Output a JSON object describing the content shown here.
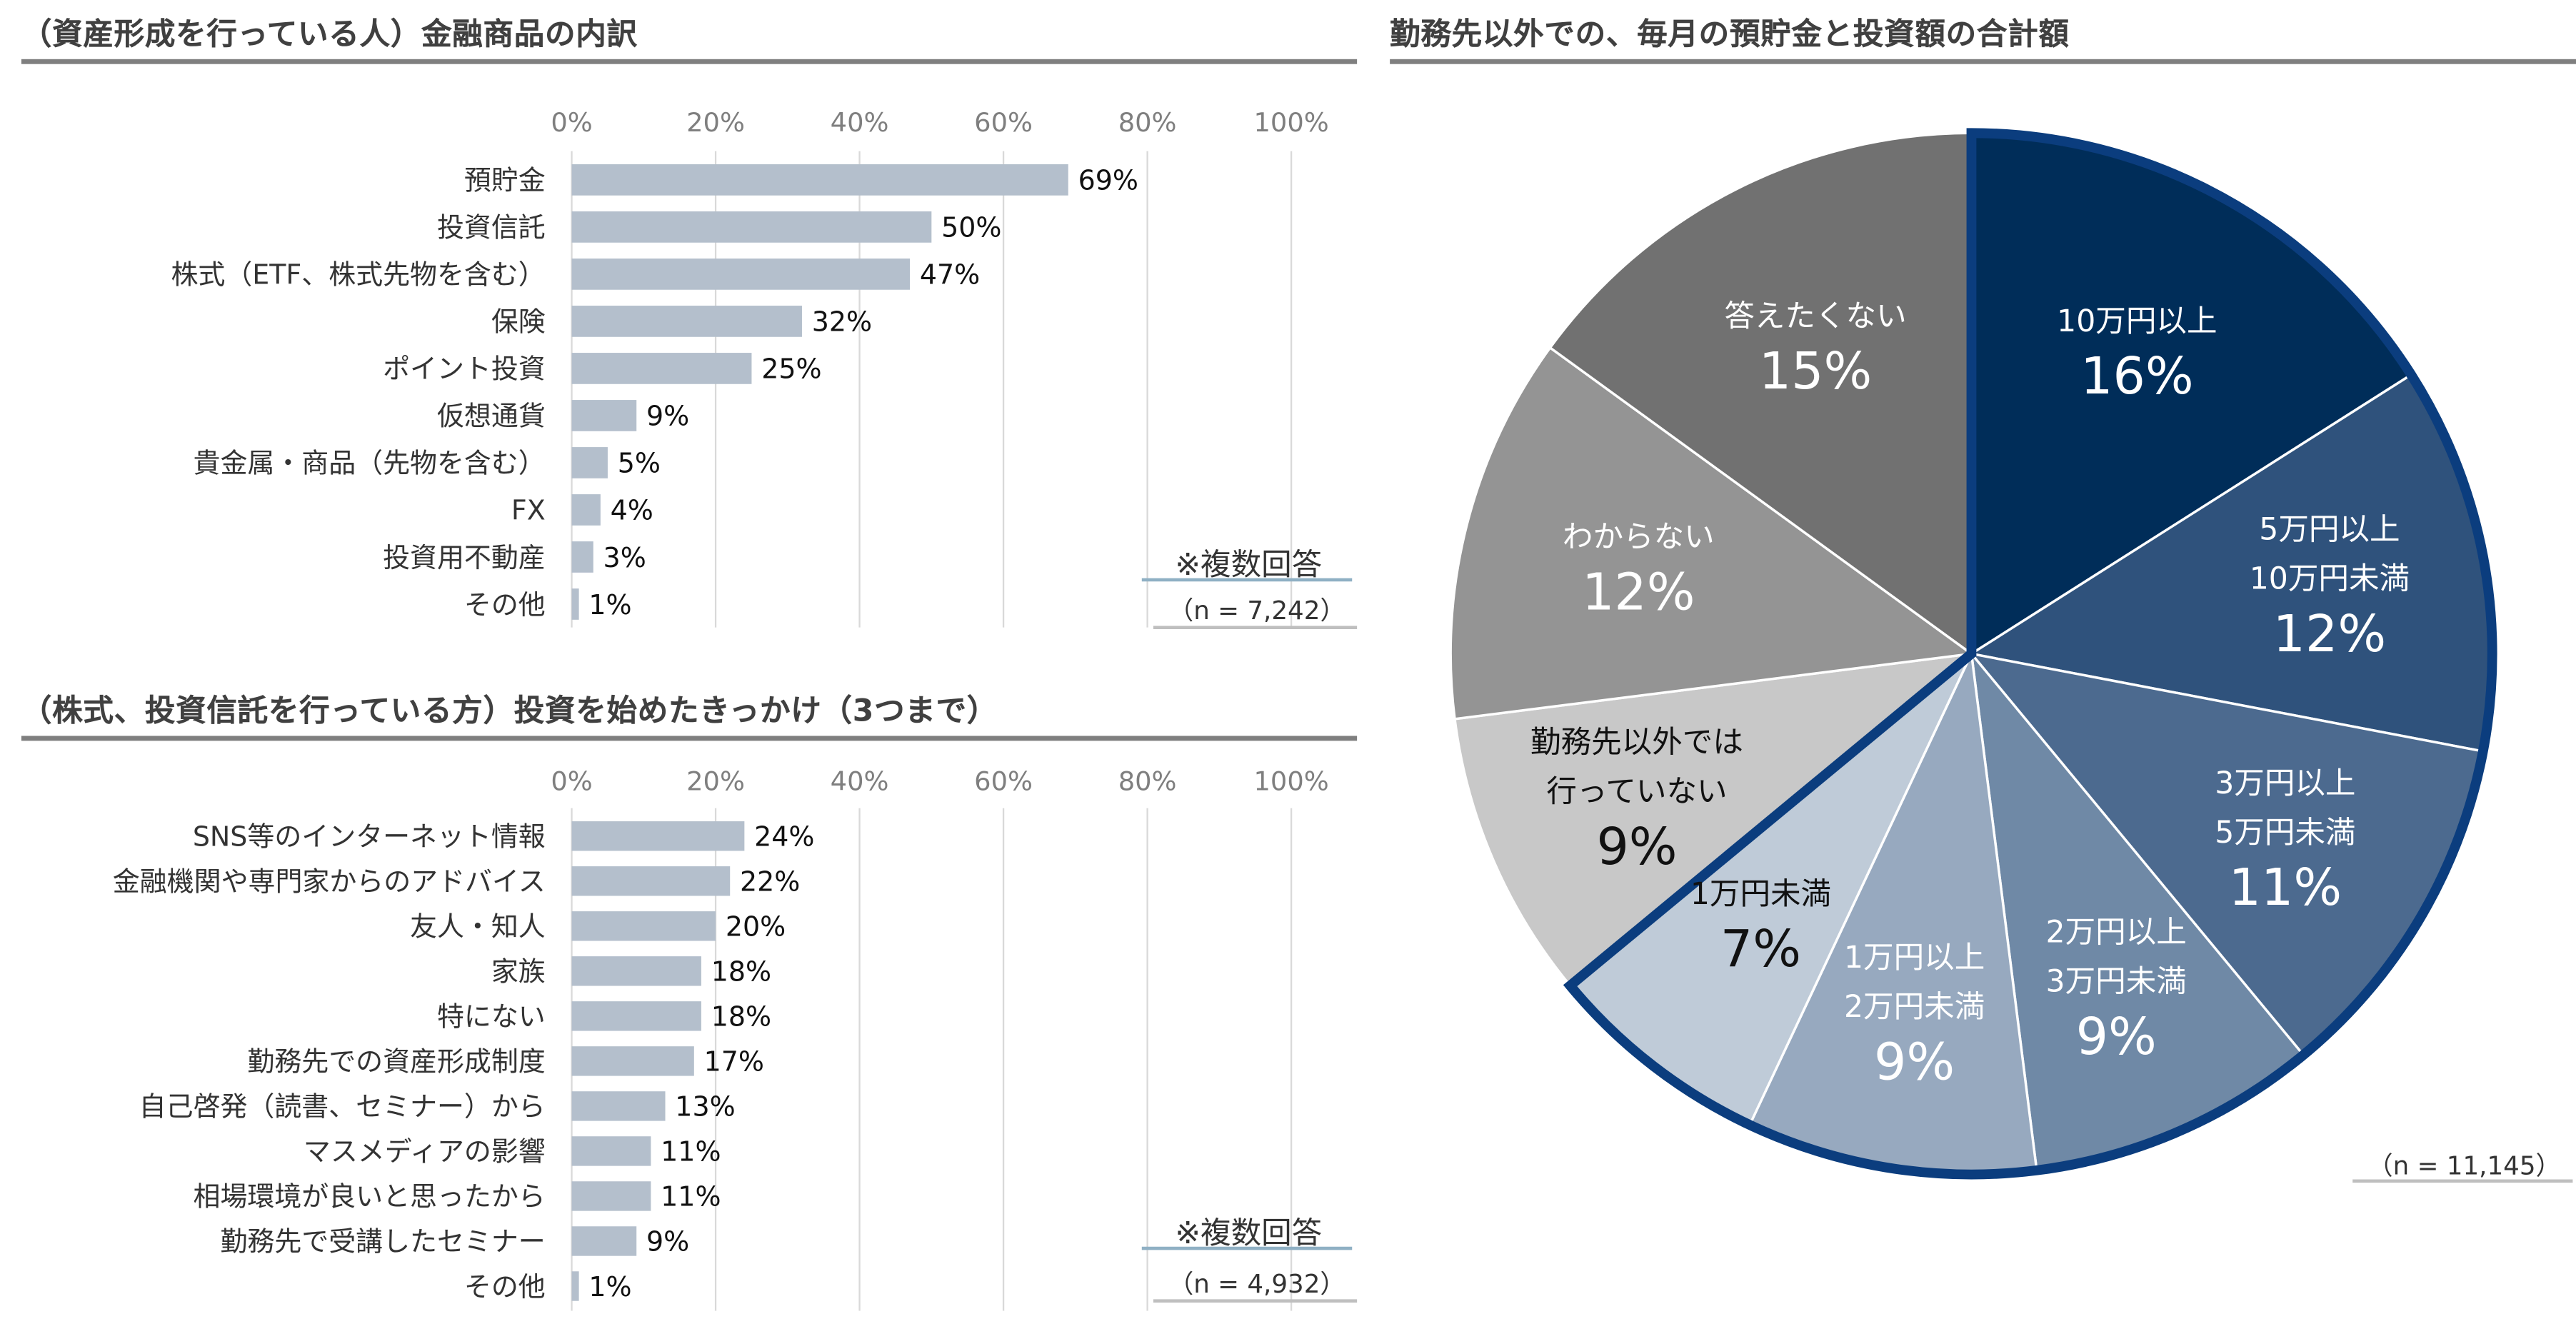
{
  "left_top": {
    "title": "（資産形成を行っている人）金融商品の内訳",
    "note": "※複数回答",
    "n_label": "（n = 7,242）"
  },
  "left_bottom": {
    "title": "（株式、投資信託を行っている方）投資を始めたきっかけ（3つまで）",
    "note": "※複数回答",
    "n_label": "（n = 4,932）"
  },
  "right": {
    "title": "勤務先以外での、毎月の預貯金と投資額の合計額",
    "n_label": "（n = 11,145）"
  },
  "colors": {
    "bar": "#b4bfcc",
    "grid": "#d9d9d9",
    "rule": "#7f7f7f",
    "highlight_outline": "#0b3d7e"
  },
  "chart_data": [
    {
      "type": "bar",
      "orientation": "horizontal",
      "title": "（資産形成を行っている人）金融商品の内訳",
      "categories": [
        "預貯金",
        "投資信託",
        "株式（ETF、株式先物を含む）",
        "保険",
        "ポイント投資",
        "仮想通貨",
        "貴金属・商品（先物を含む）",
        "FX",
        "投資用不動産",
        "その他"
      ],
      "values": [
        69,
        50,
        47,
        32,
        25,
        9,
        5,
        4,
        3,
        1
      ],
      "value_labels": [
        "69%",
        "50%",
        "47%",
        "32%",
        "25%",
        "9%",
        "5%",
        "4%",
        "3%",
        "1%"
      ],
      "xlim": [
        0,
        100
      ],
      "xticks": [
        "0%",
        "20%",
        "40%",
        "60%",
        "80%",
        "100%"
      ],
      "grid": true
    },
    {
      "type": "bar",
      "orientation": "horizontal",
      "title": "（株式、投資信託を行っている方）投資を始めたきっかけ（3つまで）",
      "categories": [
        "SNS等のインターネット情報",
        "金融機関や専門家からのアドバイス",
        "友人・知人",
        "家族",
        "特にない",
        "勤務先での資産形成制度",
        "自己啓発（読書、セミナー）から",
        "マスメディアの影響",
        "相場環境が良いと思ったから",
        "勤務先で受講したセミナー",
        "その他"
      ],
      "values": [
        24,
        22,
        20,
        18,
        18,
        17,
        13,
        11,
        11,
        9,
        1
      ],
      "value_labels": [
        "24%",
        "22%",
        "20%",
        "18%",
        "18%",
        "17%",
        "13%",
        "11%",
        "11%",
        "9%",
        "1%"
      ],
      "xlim": [
        0,
        100
      ],
      "xticks": [
        "0%",
        "20%",
        "40%",
        "60%",
        "80%",
        "100%"
      ],
      "grid": true
    },
    {
      "type": "pie",
      "title": "勤務先以外での、毎月の預貯金と投資額の合計額",
      "slices": [
        {
          "label_lines": [
            "10万円以上"
          ],
          "value": 16,
          "value_label": "16%",
          "color": "#002d59",
          "text_color": "#ffffff"
        },
        {
          "label_lines": [
            "5万円以上",
            "10万円未満"
          ],
          "value": 12,
          "value_label": "12%",
          "color": "#2f527c",
          "text_color": "#ffffff"
        },
        {
          "label_lines": [
            "3万円以上",
            "5万円未満"
          ],
          "value": 11,
          "value_label": "11%",
          "color": "#4c6a8f",
          "text_color": "#ffffff"
        },
        {
          "label_lines": [
            "2万円以上",
            "3万円未満"
          ],
          "value": 9,
          "value_label": "9%",
          "color": "#6f89a6",
          "text_color": "#ffffff"
        },
        {
          "label_lines": [
            "1万円以上",
            "2万円未満"
          ],
          "value": 9,
          "value_label": "9%",
          "color": "#97a9bf",
          "text_color": "#ffffff"
        },
        {
          "label_lines": [
            "1万円未満"
          ],
          "value": 7,
          "value_label": "7%",
          "color": "#bfcbd8",
          "text_color": "#111111"
        },
        {
          "label_lines": [
            "勤務先以外では",
            "行っていない"
          ],
          "value": 9,
          "value_label": "9%",
          "color": "#c8c8c8",
          "text_color": "#111111"
        },
        {
          "label_lines": [
            "わからない"
          ],
          "value": 12,
          "value_label": "12%",
          "color": "#949494",
          "text_color": "#ffffff"
        },
        {
          "label_lines": [
            "答えたくない"
          ],
          "value": 15,
          "value_label": "15%",
          "color": "#717171",
          "text_color": "#ffffff"
        }
      ],
      "highlighted_group": [
        0,
        1,
        2,
        3,
        4,
        5
      ]
    }
  ]
}
